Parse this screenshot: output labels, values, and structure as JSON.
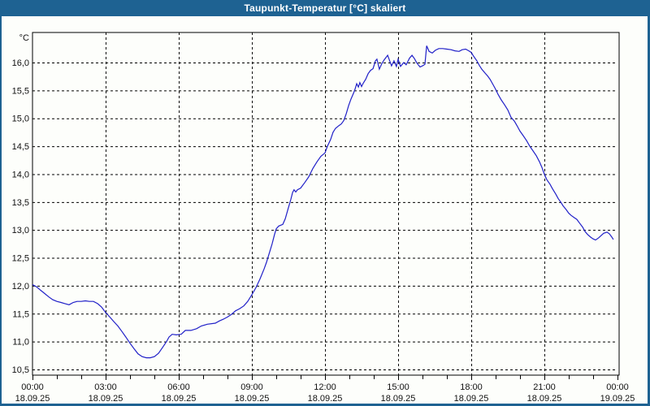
{
  "window": {
    "title": "Taupunkt-Temperatur [°C] skaliert",
    "chrome_color": "#1e6292",
    "background_color": "#fdfefb"
  },
  "chart_data": {
    "type": "line",
    "title": "Taupunkt-Temperatur [°C] skaliert",
    "grid": "dashed",
    "line_color": "#2020c8",
    "axis_color": "#000000",
    "y_axis": {
      "unit": "°C",
      "min": 10.5,
      "max": 16.0,
      "step": 0.5,
      "tick_labels": [
        "10,5",
        "11,0",
        "11,5",
        "12,0",
        "12,5",
        "13,0",
        "13,5",
        "14,0",
        "14,5",
        "15,0",
        "15,5",
        "16,0"
      ]
    },
    "x_axis": {
      "range_hours": [
        0,
        24
      ],
      "minor_tick_hours": 1,
      "major_tick_hours": 3,
      "ticks": [
        {
          "t": 0,
          "time": "00:00",
          "date": "18.09.25"
        },
        {
          "t": 3,
          "time": "03:00",
          "date": "18.09.25"
        },
        {
          "t": 6,
          "time": "06:00",
          "date": "18.09.25"
        },
        {
          "t": 9,
          "time": "09:00",
          "date": "18.09.25"
        },
        {
          "t": 12,
          "time": "12:00",
          "date": "18.09.25"
        },
        {
          "t": 15,
          "time": "15:00",
          "date": "18.09.25"
        },
        {
          "t": 18,
          "time": "18:00",
          "date": "18.09.25"
        },
        {
          "t": 21,
          "time": "21:00",
          "date": "18.09.25"
        },
        {
          "t": 24,
          "time": "00:00",
          "date": "19.09.25"
        }
      ]
    },
    "series": [
      {
        "name": "Taupunkt-Temperatur",
        "color": "#2020c8",
        "points": [
          [
            0.0,
            12.02
          ],
          [
            0.17,
            11.98
          ],
          [
            0.33,
            11.92
          ],
          [
            0.5,
            11.86
          ],
          [
            0.67,
            11.8
          ],
          [
            0.83,
            11.75
          ],
          [
            1.0,
            11.72
          ],
          [
            1.17,
            11.7
          ],
          [
            1.33,
            11.68
          ],
          [
            1.5,
            11.66
          ],
          [
            1.67,
            11.7
          ],
          [
            1.83,
            11.72
          ],
          [
            2.0,
            11.72
          ],
          [
            2.17,
            11.73
          ],
          [
            2.33,
            11.72
          ],
          [
            2.5,
            11.72
          ],
          [
            2.67,
            11.68
          ],
          [
            2.83,
            11.62
          ],
          [
            3.0,
            11.52
          ],
          [
            3.17,
            11.44
          ],
          [
            3.33,
            11.36
          ],
          [
            3.5,
            11.28
          ],
          [
            3.67,
            11.18
          ],
          [
            3.83,
            11.08
          ],
          [
            4.0,
            10.97
          ],
          [
            4.17,
            10.87
          ],
          [
            4.33,
            10.78
          ],
          [
            4.5,
            10.73
          ],
          [
            4.67,
            10.71
          ],
          [
            4.83,
            10.71
          ],
          [
            5.0,
            10.73
          ],
          [
            5.17,
            10.79
          ],
          [
            5.33,
            10.89
          ],
          [
            5.5,
            11.0
          ],
          [
            5.6,
            11.08
          ],
          [
            5.73,
            11.13
          ],
          [
            5.9,
            11.12
          ],
          [
            6.1,
            11.13
          ],
          [
            6.27,
            11.2
          ],
          [
            6.5,
            11.2
          ],
          [
            6.73,
            11.23
          ],
          [
            6.93,
            11.28
          ],
          [
            7.17,
            11.31
          ],
          [
            7.5,
            11.33
          ],
          [
            7.67,
            11.37
          ],
          [
            7.83,
            11.4
          ],
          [
            8.0,
            11.44
          ],
          [
            8.17,
            11.49
          ],
          [
            8.33,
            11.55
          ],
          [
            8.5,
            11.59
          ],
          [
            8.67,
            11.64
          ],
          [
            8.83,
            11.72
          ],
          [
            9.0,
            11.84
          ],
          [
            9.17,
            11.97
          ],
          [
            9.33,
            12.12
          ],
          [
            9.5,
            12.3
          ],
          [
            9.6,
            12.42
          ],
          [
            9.67,
            12.52
          ],
          [
            9.83,
            12.75
          ],
          [
            9.93,
            12.92
          ],
          [
            10.0,
            13.02
          ],
          [
            10.1,
            13.07
          ],
          [
            10.27,
            13.1
          ],
          [
            10.37,
            13.2
          ],
          [
            10.5,
            13.4
          ],
          [
            10.6,
            13.55
          ],
          [
            10.67,
            13.67
          ],
          [
            10.73,
            13.72
          ],
          [
            10.8,
            13.68
          ],
          [
            10.87,
            13.72
          ],
          [
            11.0,
            13.75
          ],
          [
            11.17,
            13.85
          ],
          [
            11.33,
            13.95
          ],
          [
            11.5,
            14.1
          ],
          [
            11.67,
            14.22
          ],
          [
            11.83,
            14.32
          ],
          [
            12.0,
            14.38
          ],
          [
            12.1,
            14.5
          ],
          [
            12.23,
            14.62
          ],
          [
            12.33,
            14.75
          ],
          [
            12.43,
            14.82
          ],
          [
            12.57,
            14.87
          ],
          [
            12.67,
            14.9
          ],
          [
            12.77,
            14.96
          ],
          [
            12.87,
            15.08
          ],
          [
            12.97,
            15.23
          ],
          [
            13.07,
            15.35
          ],
          [
            13.17,
            15.45
          ],
          [
            13.23,
            15.52
          ],
          [
            13.3,
            15.62
          ],
          [
            13.37,
            15.56
          ],
          [
            13.43,
            15.64
          ],
          [
            13.5,
            15.57
          ],
          [
            13.57,
            15.63
          ],
          [
            13.67,
            15.7
          ],
          [
            13.77,
            15.8
          ],
          [
            13.87,
            15.86
          ],
          [
            13.97,
            15.89
          ],
          [
            14.07,
            16.03
          ],
          [
            14.13,
            16.06
          ],
          [
            14.23,
            15.88
          ],
          [
            14.33,
            15.98
          ],
          [
            14.43,
            16.05
          ],
          [
            14.57,
            16.13
          ],
          [
            14.73,
            15.94
          ],
          [
            14.83,
            16.03
          ],
          [
            14.93,
            15.93
          ],
          [
            15.0,
            16.06
          ],
          [
            15.1,
            15.93
          ],
          [
            15.23,
            16.0
          ],
          [
            15.33,
            15.96
          ],
          [
            15.47,
            16.08
          ],
          [
            15.57,
            16.13
          ],
          [
            15.67,
            16.07
          ],
          [
            15.77,
            15.99
          ],
          [
            15.9,
            15.92
          ],
          [
            16.0,
            15.94
          ],
          [
            16.1,
            15.97
          ],
          [
            16.17,
            16.3
          ],
          [
            16.27,
            16.2
          ],
          [
            16.4,
            16.17
          ],
          [
            16.53,
            16.22
          ],
          [
            16.67,
            16.25
          ],
          [
            16.83,
            16.25
          ],
          [
            17.0,
            16.24
          ],
          [
            17.17,
            16.23
          ],
          [
            17.33,
            16.21
          ],
          [
            17.5,
            16.2
          ],
          [
            17.63,
            16.23
          ],
          [
            17.77,
            16.24
          ],
          [
            17.9,
            16.21
          ],
          [
            18.0,
            16.18
          ],
          [
            18.1,
            16.11
          ],
          [
            18.23,
            16.03
          ],
          [
            18.33,
            15.95
          ],
          [
            18.43,
            15.88
          ],
          [
            18.57,
            15.81
          ],
          [
            18.67,
            15.76
          ],
          [
            18.77,
            15.7
          ],
          [
            18.9,
            15.6
          ],
          [
            19.0,
            15.52
          ],
          [
            19.1,
            15.43
          ],
          [
            19.23,
            15.33
          ],
          [
            19.37,
            15.24
          ],
          [
            19.5,
            15.15
          ],
          [
            19.63,
            15.02
          ],
          [
            19.77,
            14.95
          ],
          [
            19.9,
            14.85
          ],
          [
            20.0,
            14.77
          ],
          [
            20.13,
            14.69
          ],
          [
            20.27,
            14.6
          ],
          [
            20.4,
            14.5
          ],
          [
            20.53,
            14.42
          ],
          [
            20.67,
            14.33
          ],
          [
            20.8,
            14.22
          ],
          [
            20.9,
            14.12
          ],
          [
            21.0,
            14.0
          ],
          [
            21.1,
            13.9
          ],
          [
            21.23,
            13.82
          ],
          [
            21.33,
            13.74
          ],
          [
            21.47,
            13.64
          ],
          [
            21.57,
            13.56
          ],
          [
            21.67,
            13.5
          ],
          [
            21.77,
            13.43
          ],
          [
            21.9,
            13.36
          ],
          [
            22.0,
            13.3
          ],
          [
            22.1,
            13.26
          ],
          [
            22.23,
            13.22
          ],
          [
            22.33,
            13.19
          ],
          [
            22.43,
            13.13
          ],
          [
            22.57,
            13.05
          ],
          [
            22.67,
            12.97
          ],
          [
            22.77,
            12.92
          ],
          [
            22.9,
            12.87
          ],
          [
            23.0,
            12.84
          ],
          [
            23.1,
            12.82
          ],
          [
            23.23,
            12.86
          ],
          [
            23.33,
            12.9
          ],
          [
            23.43,
            12.94
          ],
          [
            23.57,
            12.96
          ],
          [
            23.67,
            12.93
          ],
          [
            23.77,
            12.87
          ],
          [
            23.83,
            12.83
          ]
        ]
      }
    ]
  }
}
